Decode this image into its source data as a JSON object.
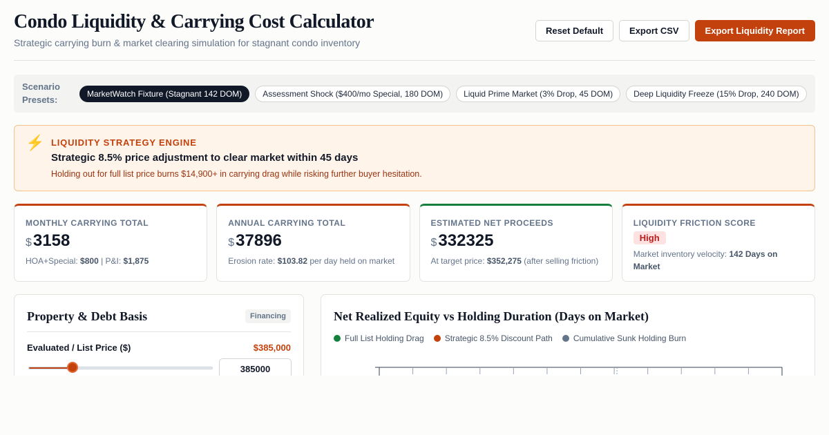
{
  "header": {
    "title": "Condo Liquidity & Carrying Cost Calculator",
    "subtitle": "Strategic carrying burn & market clearing simulation for stagnant condo inventory",
    "buttons": {
      "reset": "Reset Default",
      "export_csv": "Export CSV",
      "export_report": "Export Liquidity Report"
    }
  },
  "presets": {
    "label": "Scenario Presets:",
    "items": [
      {
        "label": "MarketWatch Fixture (Stagnant 142 DOM)",
        "active": true
      },
      {
        "label": "Assessment Shock ($400/mo Special, 180 DOM)",
        "active": false
      },
      {
        "label": "Liquid Prime Market (3% Drop, 45 DOM)",
        "active": false
      },
      {
        "label": "Deep Liquidity Freeze (15% Drop, 240 DOM)",
        "active": false
      }
    ]
  },
  "engine": {
    "tag": "LIQUIDITY STRATEGY ENGINE",
    "headline": "Strategic 8.5% price adjustment to clear market within 45 days",
    "note": "Holding out for full list price burns $14,900+ in carrying drag while risking further buyer hesitation.",
    "icon": "lightning-icon"
  },
  "kpis": {
    "monthly": {
      "label": "MONTHLY CARRYING TOTAL",
      "currency": "$",
      "value": "3158",
      "sub_a": "HOA+Special: ",
      "sub_a_val": "$800",
      "sub_sep": " | P&I: ",
      "sub_b_val": "$1,875"
    },
    "annual": {
      "label": "ANNUAL CARRYING TOTAL",
      "currency": "$",
      "value": "37896",
      "sub_a": "Erosion rate: ",
      "sub_a_val": "$103.82",
      "sub_b": " per day held on market"
    },
    "proceeds": {
      "label": "ESTIMATED NET PROCEEDS",
      "currency": "$",
      "value": "332325",
      "sub_a": "At target price: ",
      "sub_a_val": "$352,275",
      "sub_b": " (after selling friction)"
    },
    "friction": {
      "label": "LIQUIDITY FRICTION SCORE",
      "badge": "High",
      "sub_a": "Market inventory velocity: ",
      "sub_a_val": "142 Days on Market"
    }
  },
  "property": {
    "title": "Property & Debt Basis",
    "tag": "Financing",
    "field_label": "Evaluated / List Price ($)",
    "field_value": "$385,000",
    "input_value": "385000",
    "slider_fraction": 0.24
  },
  "chart": {
    "title": "Net Realized Equity vs Holding Duration (Days on Market)",
    "legend": [
      {
        "name": "Full List Holding Drag",
        "color": "#15803d"
      },
      {
        "name": "Strategic 8.5% Discount Path",
        "color": "#c2410c"
      },
      {
        "name": "Cumulative Sunk Holding Burn",
        "color": "#64748b"
      }
    ]
  },
  "colors": {
    "accent": "#c2410c",
    "positive": "#15803d",
    "neutral": "#64748b"
  }
}
